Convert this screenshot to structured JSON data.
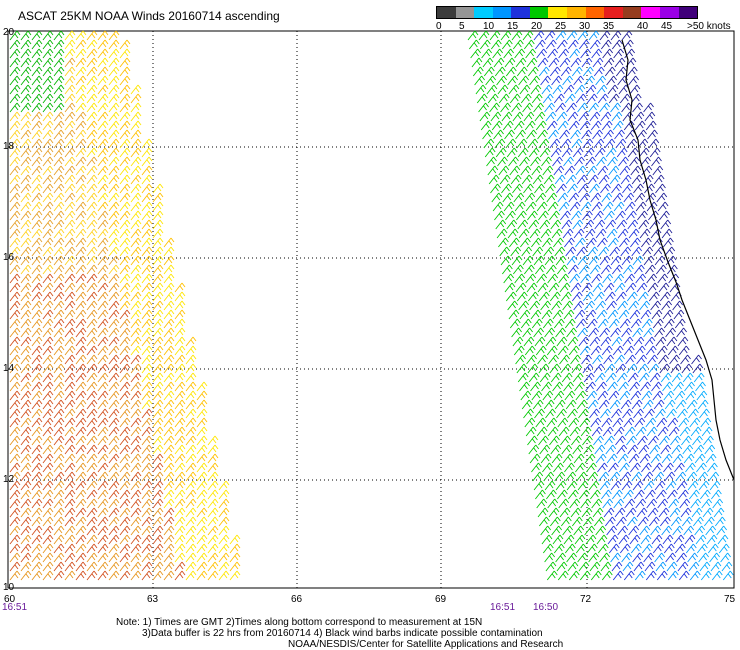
{
  "header": {
    "title": "ASCAT 25KM NOAA Winds 20160714 ascending"
  },
  "legend": {
    "colors": [
      "#3c3c3c",
      "#969696",
      "#00ccff",
      "#0096ff",
      "#1e32dc",
      "#00c800",
      "#ffe600",
      "#ffb400",
      "#ff6400",
      "#e61e1e",
      "#963c1e",
      "#ff00ff",
      "#9b00e6",
      "#40007a"
    ],
    "labels": [
      "0",
      "5",
      "10",
      "15",
      "20",
      "25",
      "30",
      "35",
      "40",
      "45",
      ">50 knots"
    ]
  },
  "axes": {
    "lat_labels": [
      "20",
      "18",
      "16",
      "14",
      "12",
      "10"
    ],
    "lon_labels": [
      "60",
      "63",
      "66",
      "69",
      "72",
      "75"
    ]
  },
  "times": {
    "left": "16:51",
    "right_a": "16:51",
    "right_b": "16:50"
  },
  "notes": {
    "line1": "Note: 1) Times are GMT 2)Times along bottom correspond to measurement at 15N",
    "line2": "3)Data buffer is 22 hrs from 20160714 4) Black wind barbs indicate possible contamination",
    "line3": "NOAA/NESDIS/Center for Satellite Applications and Research"
  },
  "chart_data": {
    "type": "wind-barb map",
    "title": "ASCAT 25KM NOAA Winds 20160714 ascending",
    "lat_range": [
      10,
      20
    ],
    "lon_range": [
      60,
      75
    ],
    "grid": true,
    "legend_units": "knots",
    "swaths": [
      {
        "name": "",
        "time": "16:51",
        "lon_range_at_10N": [
          60,
          64.8
        ],
        "dominant_speed_knots": [
          20,
          30
        ]
      },
      {
        "name": "",
        "time": "16:51 / 16:50",
        "lon_range_at_10N": [
          71.3,
          75
        ],
        "dominant_speed_knots": [
          10,
          20
        ]
      }
    ]
  }
}
